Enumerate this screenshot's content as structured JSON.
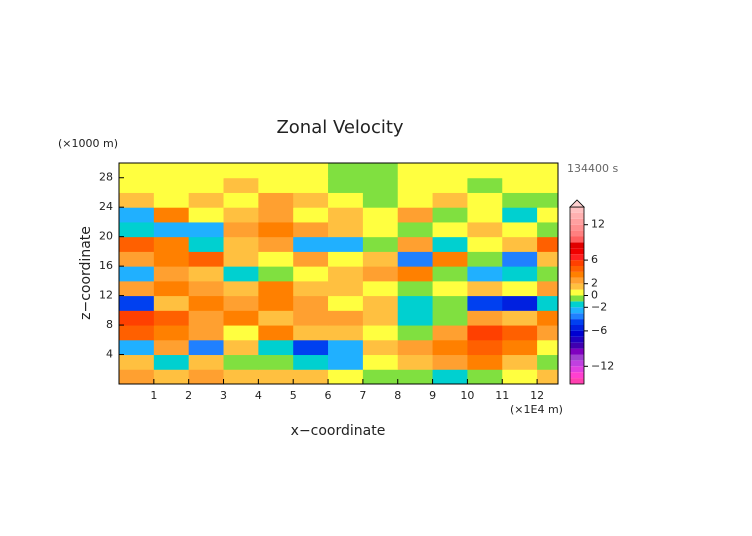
{
  "chart_data": {
    "type": "contour",
    "title": "Zonal Velocity",
    "x_label": "x−coordinate",
    "y_label": "z−coordinate",
    "x_unit": "(×1E4 m)",
    "y_unit": "(×1000 m)",
    "time_label": "134400 s",
    "x": [
      0.5,
      1.5,
      2.5,
      3.5,
      4.5,
      5.5,
      6.5,
      7.5,
      8.5,
      9.5,
      10.5,
      11.5,
      12.5
    ],
    "z": [
      1,
      3,
      5,
      7,
      9,
      11,
      13,
      15,
      17,
      19,
      21,
      23,
      25,
      27,
      29
    ],
    "values": [
      [
        2,
        1,
        2,
        1,
        1,
        1,
        0,
        -1,
        -1,
        -2,
        -1,
        0,
        1
      ],
      [
        1,
        -2,
        1,
        -1,
        -1,
        -2,
        -3,
        0,
        1,
        2,
        3,
        1,
        -1
      ],
      [
        -3,
        2,
        -4,
        1,
        -2,
        -5,
        -3,
        1,
        2,
        3,
        4,
        3,
        0
      ],
      [
        4,
        3,
        2,
        0,
        3,
        1,
        1,
        0,
        -1,
        2,
        5,
        4,
        2
      ],
      [
        5,
        4,
        2,
        3,
        1,
        2,
        2,
        1,
        -2,
        -1,
        2,
        1,
        3
      ],
      [
        -5,
        1,
        3,
        2,
        3,
        2,
        0,
        1,
        -2,
        -1,
        -5,
        -6,
        -2
      ],
      [
        2,
        3,
        2,
        1,
        3,
        1,
        1,
        0,
        -1,
        0,
        1,
        0,
        2
      ],
      [
        -3,
        2,
        1,
        -2,
        -1,
        0,
        1,
        2,
        3,
        -1,
        -3,
        -2,
        -1
      ],
      [
        2,
        3,
        4,
        1,
        0,
        2,
        0,
        1,
        -4,
        3,
        -1,
        -4,
        1
      ],
      [
        4,
        3,
        -2,
        1,
        2,
        -3,
        -3,
        -1,
        2,
        -2,
        0,
        1,
        4
      ],
      [
        -2,
        -3,
        -3,
        2,
        3,
        2,
        1,
        0,
        -1,
        0,
        1,
        0,
        -1
      ],
      [
        -3,
        3,
        0,
        1,
        2,
        0,
        1,
        0,
        2,
        -1,
        0,
        -2,
        0
      ],
      [
        1,
        0,
        1,
        0,
        2,
        1,
        0,
        -1,
        0,
        1,
        0,
        -1,
        -1
      ],
      [
        0,
        0,
        0,
        1,
        0,
        0,
        -1,
        -1,
        0,
        0,
        -1,
        0,
        0
      ],
      [
        0,
        0,
        0,
        0,
        0,
        0,
        -1,
        -1,
        0,
        0,
        0,
        0,
        0
      ]
    ],
    "xlim": [
      0,
      12.6
    ],
    "ylim": [
      0,
      30
    ],
    "xticks": [
      1,
      2,
      3,
      4,
      5,
      6,
      7,
      8,
      9,
      10,
      11,
      12
    ],
    "yticks": [
      4,
      8,
      12,
      16,
      20,
      24,
      28
    ],
    "colorbar": {
      "levels": [
        -15,
        -14,
        -13,
        -12,
        -11,
        -10,
        -9,
        -8,
        -7,
        -6,
        -5,
        -4,
        -3,
        -2,
        -1,
        0,
        1,
        2,
        3,
        4,
        5,
        6,
        7,
        8,
        9,
        10,
        11,
        12,
        13,
        14,
        15
      ],
      "colors": [
        "#ff40b0",
        "#ff40d0",
        "#e040e0",
        "#c040e0",
        "#a040d0",
        "#8000c0",
        "#4000b0",
        "#2000c0",
        "#0000d0",
        "#0020e0",
        "#0040f0",
        "#2080ff",
        "#20b0ff",
        "#00d0d0",
        "#80e040",
        "#ffff40",
        "#ffc040",
        "#ffa030",
        "#ff8000",
        "#ff6000",
        "#ff4000",
        "#ff2020",
        "#f00000",
        "#e00000",
        "#ff6060",
        "#ff8080",
        "#ff9090",
        "#ffa0a0",
        "#ffb0b0",
        "#ffc0c0"
      ],
      "ticks": [
        {
          "value": 12,
          "label": "12"
        },
        {
          "value": 6,
          "label": "6"
        },
        {
          "value": 2,
          "label": "2"
        },
        {
          "value": 0,
          "label": "0"
        },
        {
          "value": -2,
          "label": "−2"
        },
        {
          "value": -6,
          "label": "−6"
        },
        {
          "value": -12,
          "label": "−12"
        }
      ]
    }
  }
}
